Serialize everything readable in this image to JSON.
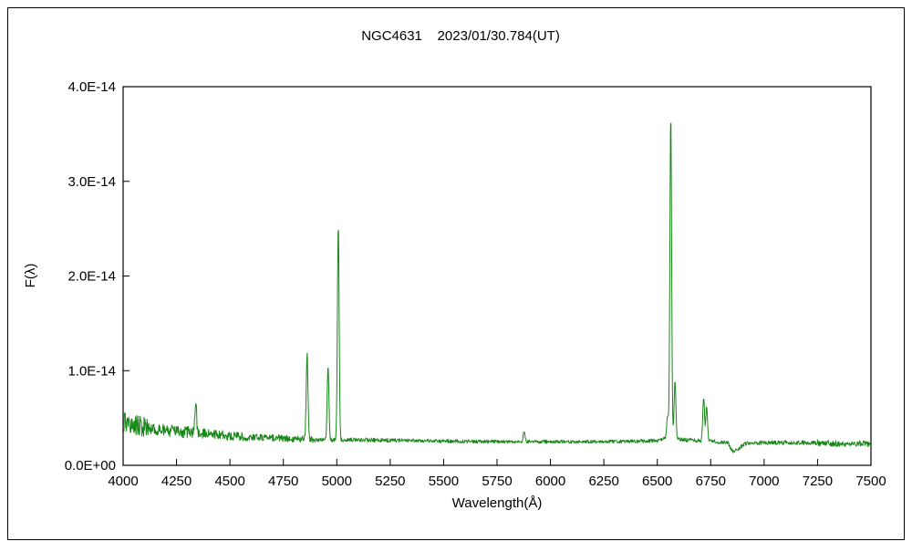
{
  "chart": {
    "title": "NGC4631    2023/01/30.784(UT)",
    "xlabel": "Wavelength(Å)",
    "ylabel": "F(λ)"
  },
  "chart_data": {
    "type": "line",
    "title": "NGC4631 2023/01/30.784(UT)",
    "xlabel": "Wavelength(Å)",
    "ylabel": "F(λ)",
    "xlim": [
      4000,
      7500
    ],
    "ylim": [
      0,
      4e-14
    ],
    "grid": false,
    "legend": "none",
    "line_color": "#178717",
    "x_ticks": [
      4000,
      4250,
      4500,
      4750,
      5000,
      5250,
      5500,
      5750,
      6000,
      6250,
      6500,
      6750,
      7000,
      7250,
      7500
    ],
    "y_ticks": [
      {
        "label": "0.0E+00",
        "value_1e14": 0
      },
      {
        "label": "1.0E-14",
        "value_1e14": 1
      },
      {
        "label": "2.0E-14",
        "value_1e14": 2
      },
      {
        "label": "3.0E-14",
        "value_1e14": 3
      },
      {
        "label": "4.0E-14",
        "value_1e14": 4
      }
    ],
    "flux_scale": 1e-14,
    "continuum_1e14": [
      [
        4000,
        0.46
      ],
      [
        4060,
        0.42
      ],
      [
        4150,
        0.38
      ],
      [
        4250,
        0.36
      ],
      [
        4350,
        0.34
      ],
      [
        4500,
        0.31
      ],
      [
        4700,
        0.29
      ],
      [
        4900,
        0.27
      ],
      [
        5100,
        0.27
      ],
      [
        5400,
        0.26
      ],
      [
        5700,
        0.25
      ],
      [
        6000,
        0.25
      ],
      [
        6300,
        0.25
      ],
      [
        6500,
        0.26
      ],
      [
        6560,
        0.3
      ],
      [
        6620,
        0.27
      ],
      [
        6700,
        0.26
      ],
      [
        6830,
        0.24
      ],
      [
        6855,
        0.14
      ],
      [
        6880,
        0.17
      ],
      [
        6910,
        0.23
      ],
      [
        7000,
        0.24
      ],
      [
        7200,
        0.24
      ],
      [
        7350,
        0.23
      ],
      [
        7500,
        0.23
      ]
    ],
    "emission_peaks_1e14": [
      {
        "wavelength": 4340,
        "peak": 0.66,
        "sigma": 4
      },
      {
        "wavelength": 4861,
        "peak": 1.18,
        "sigma": 4
      },
      {
        "wavelength": 4959,
        "peak": 1.05,
        "sigma": 4
      },
      {
        "wavelength": 5007,
        "peak": 2.55,
        "sigma": 4
      },
      {
        "wavelength": 5876,
        "peak": 0.36,
        "sigma": 4
      },
      {
        "wavelength": 6548,
        "peak": 0.52,
        "sigma": 4
      },
      {
        "wavelength": 6563,
        "peak": 3.7,
        "sigma": 4
      },
      {
        "wavelength": 6583,
        "peak": 0.9,
        "sigma": 4
      },
      {
        "wavelength": 6717,
        "peak": 0.72,
        "sigma": 4
      },
      {
        "wavelength": 6731,
        "peak": 0.62,
        "sigma": 4
      }
    ],
    "noise_amp_1e14_regions": [
      [
        4000,
        4120,
        0.11
      ],
      [
        4120,
        4350,
        0.065
      ],
      [
        4350,
        4600,
        0.05
      ],
      [
        4600,
        4900,
        0.035
      ],
      [
        4900,
        5300,
        0.022
      ],
      [
        5300,
        6400,
        0.018
      ],
      [
        6400,
        6800,
        0.02
      ],
      [
        6800,
        7250,
        0.022
      ],
      [
        7250,
        7500,
        0.032
      ]
    ]
  }
}
